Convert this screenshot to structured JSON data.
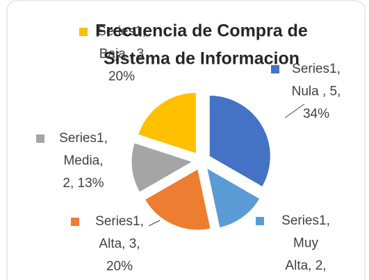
{
  "chart_data": {
    "type": "pie",
    "title": [
      "Frecuencia de Compra de",
      "Sistema de Informacion"
    ],
    "categories": [
      "Nula",
      "Muy Alta",
      "Alta",
      "Media",
      "Baja"
    ],
    "values": [
      5,
      2,
      3,
      2,
      3
    ],
    "colors": [
      "#4472c4",
      "#5b9bd5",
      "#ed7d31",
      "#a5a5a5",
      "#ffc000"
    ],
    "value_labels": [
      [
        "Series1,",
        "Nula , 5,",
        "34%"
      ],
      [
        "Series1,",
        "Muy",
        "Alta, 2,"
      ],
      [
        "Series1,",
        "Alta, 3,",
        "20%"
      ],
      [
        "Series1,",
        "Media,",
        "2, 13%"
      ],
      [
        "Series1,",
        "Baja , 3",
        "20%"
      ]
    ],
    "exploded": true
  }
}
